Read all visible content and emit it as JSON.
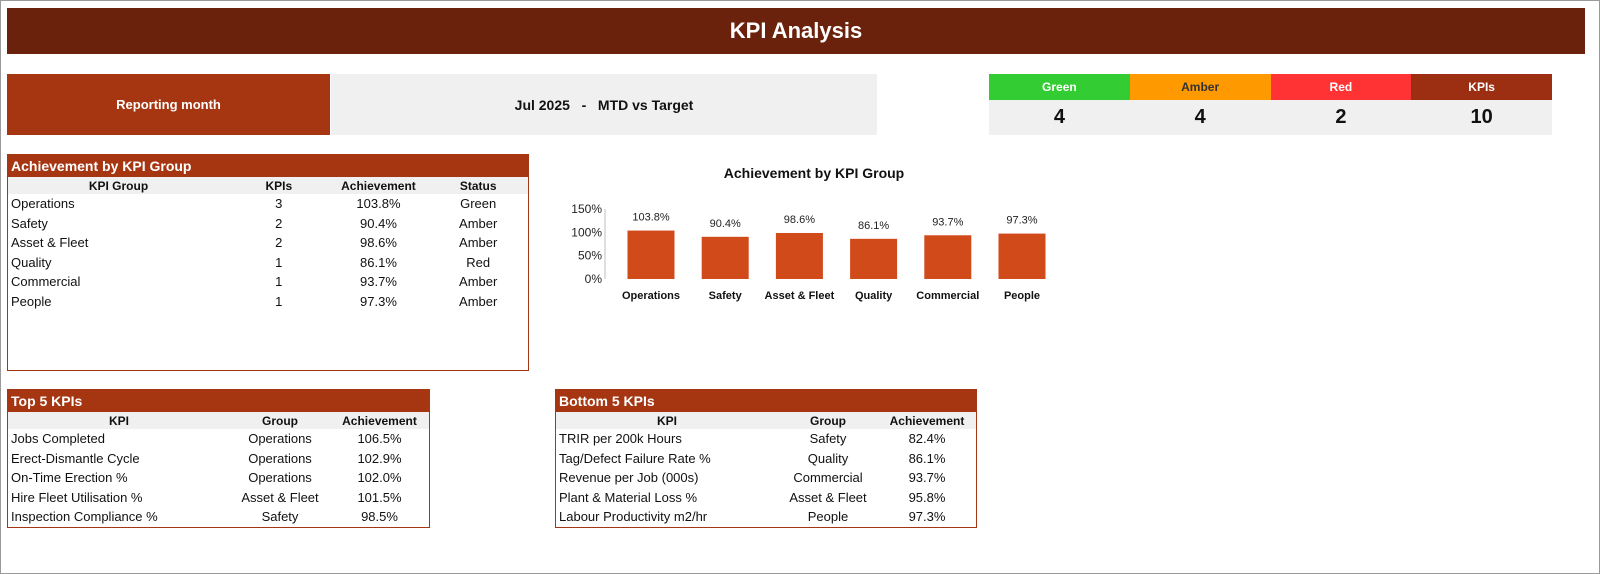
{
  "header": {
    "title": "KPI Analysis"
  },
  "reporting": {
    "label": "Reporting month",
    "value": "Jul 2025   -   MTD vs Target"
  },
  "status_summary": [
    {
      "label": "Green",
      "count": "4",
      "color": "#33cc33",
      "text_color": "#ffffff"
    },
    {
      "label": "Amber",
      "count": "4",
      "color": "#ff9900",
      "text_color": "#333333"
    },
    {
      "label": "Red",
      "count": "2",
      "color": "#ff3333",
      "text_color": "#ffffff"
    },
    {
      "label": "KPIs",
      "count": "10",
      "color": "#9c2f12",
      "text_color": "#ffffff"
    }
  ],
  "group_table": {
    "title": "Achievement by KPI Group",
    "columns": [
      "KPI Group",
      "KPIs",
      "Achievement",
      "Status"
    ],
    "rows": [
      [
        "Operations",
        "3",
        "103.8%",
        "Green"
      ],
      [
        "Safety",
        "2",
        "90.4%",
        "Amber"
      ],
      [
        "Asset & Fleet",
        "2",
        "98.6%",
        "Amber"
      ],
      [
        "Quality",
        "1",
        "86.1%",
        "Red"
      ],
      [
        "Commercial",
        "1",
        "93.7%",
        "Amber"
      ],
      [
        "People",
        "1",
        "97.3%",
        "Amber"
      ]
    ]
  },
  "top5": {
    "title": "Top 5 KPIs",
    "columns": [
      "KPI",
      "Group",
      "Achievement"
    ],
    "rows": [
      [
        "Jobs Completed",
        "Operations",
        "106.5%"
      ],
      [
        "Erect-Dismantle Cycle",
        "Operations",
        "102.9%"
      ],
      [
        "On-Time Erection %",
        "Operations",
        "102.0%"
      ],
      [
        "Hire Fleet Utilisation %",
        "Asset & Fleet",
        "101.5%"
      ],
      [
        "Inspection Compliance %",
        "Safety",
        "98.5%"
      ]
    ]
  },
  "bottom5": {
    "title": "Bottom 5 KPIs",
    "columns": [
      "KPI",
      "Group",
      "Achievement"
    ],
    "rows": [
      [
        "TRIR per 200k Hours",
        "Safety",
        "82.4%"
      ],
      [
        "Tag/Defect Failure Rate %",
        "Quality",
        "86.1%"
      ],
      [
        "Revenue per Job (000s)",
        "Commercial",
        "93.7%"
      ],
      [
        "Plant & Material Loss %",
        "Asset & Fleet",
        "95.8%"
      ],
      [
        "Labour Productivity m2/hr",
        "People",
        "97.3%"
      ]
    ]
  },
  "chart_data": {
    "type": "bar",
    "title": "Achievement by KPI Group",
    "categories": [
      "Operations",
      "Safety",
      "Asset & Fleet",
      "Quality",
      "Commercial",
      "People"
    ],
    "values": [
      103.8,
      90.4,
      98.6,
      86.1,
      93.7,
      97.3
    ],
    "data_labels": [
      "103.8%",
      "90.4%",
      "98.6%",
      "86.1%",
      "93.7%",
      "97.3%"
    ],
    "yticks": [
      "0%",
      "50%",
      "100%",
      "150%"
    ],
    "ylim": [
      0,
      150
    ],
    "bar_color": "#d04a1a",
    "grid": false,
    "legend": "none"
  }
}
